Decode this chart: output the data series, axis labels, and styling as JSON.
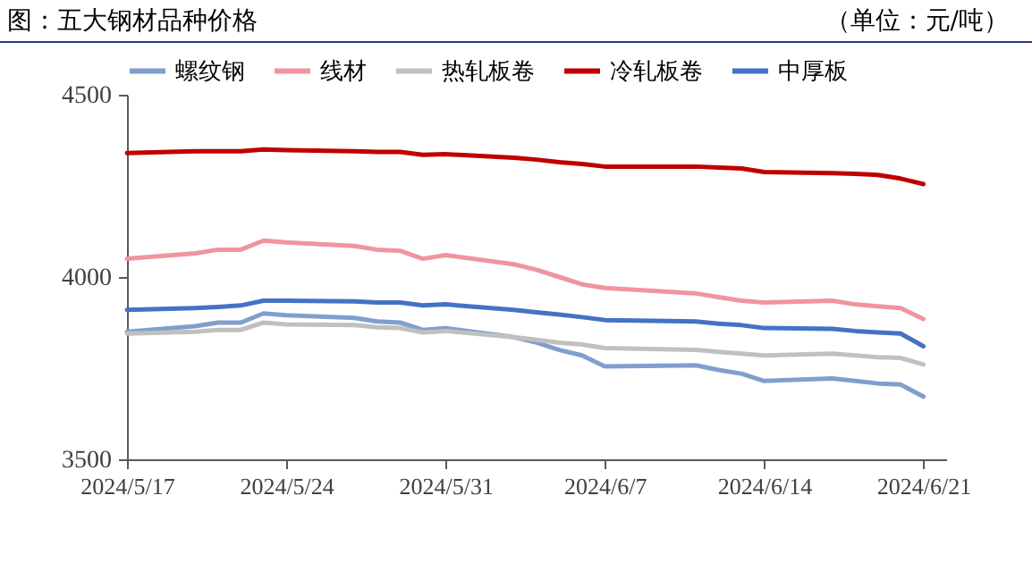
{
  "chart_data": {
    "type": "line",
    "title": "图：五大钢材品种价格",
    "subtitle": "（单位：元/吨）",
    "x": [
      "2024-05-17",
      "2024-05-20",
      "2024-05-21",
      "2024-05-22",
      "2024-05-23",
      "2024-05-24",
      "2024-05-27",
      "2024-05-28",
      "2024-05-29",
      "2024-05-30",
      "2024-05-31",
      "2024-06-03",
      "2024-06-04",
      "2024-06-05",
      "2024-06-06",
      "2024-06-07",
      "2024-06-11",
      "2024-06-12",
      "2024-06-13",
      "2024-06-14",
      "2024-06-17",
      "2024-06-18",
      "2024-06-19",
      "2024-06-20",
      "2024-06-21"
    ],
    "series": [
      {
        "name": "螺纹钢",
        "color": "#7f9fce",
        "values": [
          3850,
          3865,
          3875,
          3875,
          3900,
          3895,
          3888,
          3878,
          3875,
          3855,
          3860,
          3835,
          3820,
          3800,
          3785,
          3755,
          3758,
          3745,
          3735,
          3715,
          3722,
          3715,
          3708,
          3705,
          3672
        ]
      },
      {
        "name": "线材",
        "color": "#f0949f",
        "values": [
          4050,
          4065,
          4075,
          4075,
          4100,
          4095,
          4085,
          4075,
          4072,
          4050,
          4060,
          4035,
          4020,
          4000,
          3980,
          3970,
          3955,
          3945,
          3935,
          3930,
          3935,
          3925,
          3920,
          3915,
          3885
        ]
      },
      {
        "name": "热轧板卷",
        "color": "#c0c0c0",
        "values": [
          3845,
          3850,
          3855,
          3855,
          3875,
          3870,
          3868,
          3862,
          3860,
          3848,
          3852,
          3835,
          3828,
          3820,
          3815,
          3805,
          3800,
          3795,
          3790,
          3785,
          3790,
          3785,
          3780,
          3778,
          3760
        ]
      },
      {
        "name": "冷轧板卷",
        "color": "#c00000",
        "values": [
          4340,
          4345,
          4345,
          4345,
          4350,
          4348,
          4345,
          4343,
          4343,
          4335,
          4337,
          4327,
          4322,
          4315,
          4310,
          4303,
          4303,
          4300,
          4298,
          4288,
          4285,
          4283,
          4280,
          4270,
          4255
        ]
      },
      {
        "name": "中厚板",
        "color": "#4472c4",
        "values": [
          3910,
          3915,
          3918,
          3922,
          3935,
          3935,
          3933,
          3930,
          3930,
          3922,
          3925,
          3910,
          3903,
          3897,
          3890,
          3882,
          3878,
          3872,
          3868,
          3860,
          3858,
          3852,
          3848,
          3845,
          3810
        ]
      }
    ],
    "xlim": [
      "2024-05-17",
      "2024-06-22"
    ],
    "xticks": [
      {
        "value": "2024-05-17",
        "label": "2024/5/17"
      },
      {
        "value": "2024-05-24",
        "label": "2024/5/24"
      },
      {
        "value": "2024-05-31",
        "label": "2024/5/31"
      },
      {
        "value": "2024-06-07",
        "label": "2024/6/7"
      },
      {
        "value": "2024-06-14",
        "label": "2024/6/14"
      },
      {
        "value": "2024-06-21",
        "label": "2024/6/21"
      }
    ],
    "ylim": [
      3500,
      4500
    ],
    "yticks": [
      3500,
      4000,
      4500
    ],
    "grid": false,
    "legend": "top",
    "marker": "none",
    "line_style": "solid"
  }
}
